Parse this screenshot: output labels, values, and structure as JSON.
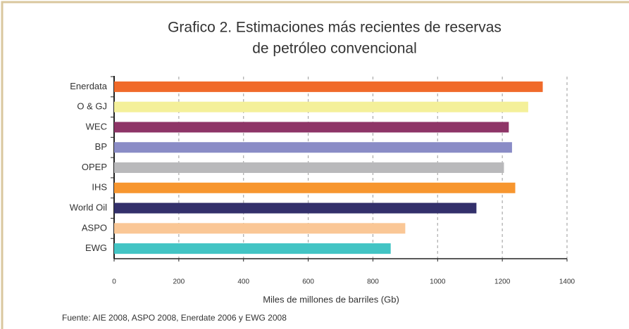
{
  "chart_data": {
    "type": "hbar",
    "title": "Grafico 2. Estimaciones más recientes de reservas",
    "subtitle": "de petróleo convencional",
    "categories": [
      "Enerdata",
      "O & GJ",
      "WEC",
      "BP",
      "OPEP",
      "IHS",
      "World Oil",
      "ASPO",
      "EWG"
    ],
    "values": [
      1325,
      1280,
      1220,
      1230,
      1205,
      1240,
      1120,
      900,
      855
    ],
    "colors": [
      "#f06a2a",
      "#f4f09a",
      "#8e3567",
      "#8a8cc6",
      "#b9b9bb",
      "#f7962f",
      "#33306b",
      "#fac796",
      "#42c4c4"
    ],
    "xlim": [
      0,
      1400
    ],
    "xticks": [
      0,
      200,
      400,
      600,
      800,
      1000,
      1200,
      1400
    ],
    "xlabel": "Miles de millones de barriles (Gb)",
    "source": "Fuente: AIE 2008, ASPO 2008, Enerdate 2006 y EWG 2008",
    "grid": true
  }
}
